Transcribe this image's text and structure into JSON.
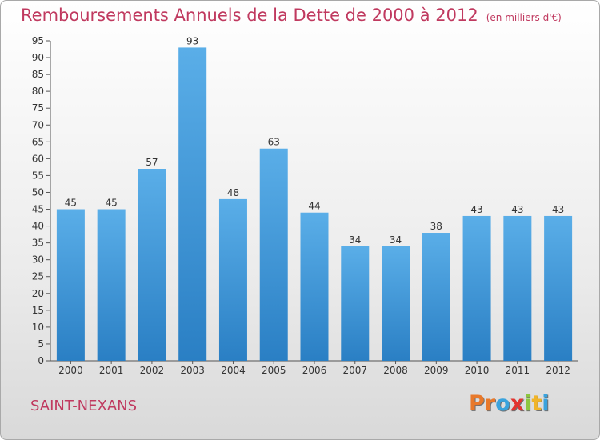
{
  "header": {
    "title": "Remboursements Annuels de la Dette de 2000 à 2012",
    "unit": "(en milliers d'€)"
  },
  "footer": {
    "commune": "SAINT-NEXANS",
    "logo_text": "Proxiti",
    "logo_colors": [
      "#e8792b",
      "#e8792b",
      "#3aa3dd",
      "#e3342f",
      "#8cc63f",
      "#f0b429",
      "#3aa3dd"
    ]
  },
  "chart_data": {
    "type": "bar",
    "title": "Remboursements Annuels de la Dette de 2000 à 2012",
    "categories": [
      "2000",
      "2001",
      "2002",
      "2003",
      "2004",
      "2005",
      "2006",
      "2007",
      "2008",
      "2009",
      "2010",
      "2011",
      "2012"
    ],
    "values": [
      45,
      45,
      57,
      93,
      48,
      63,
      44,
      34,
      34,
      38,
      43,
      43,
      43
    ],
    "ylim": [
      0,
      95
    ],
    "y_ticks": [
      0,
      5,
      10,
      15,
      20,
      25,
      30,
      35,
      40,
      45,
      50,
      55,
      60,
      65,
      70,
      75,
      80,
      85,
      90,
      95
    ],
    "grid": false,
    "bar_color_top": "#5aaee8",
    "bar_color_bottom": "#2a7fc4"
  }
}
